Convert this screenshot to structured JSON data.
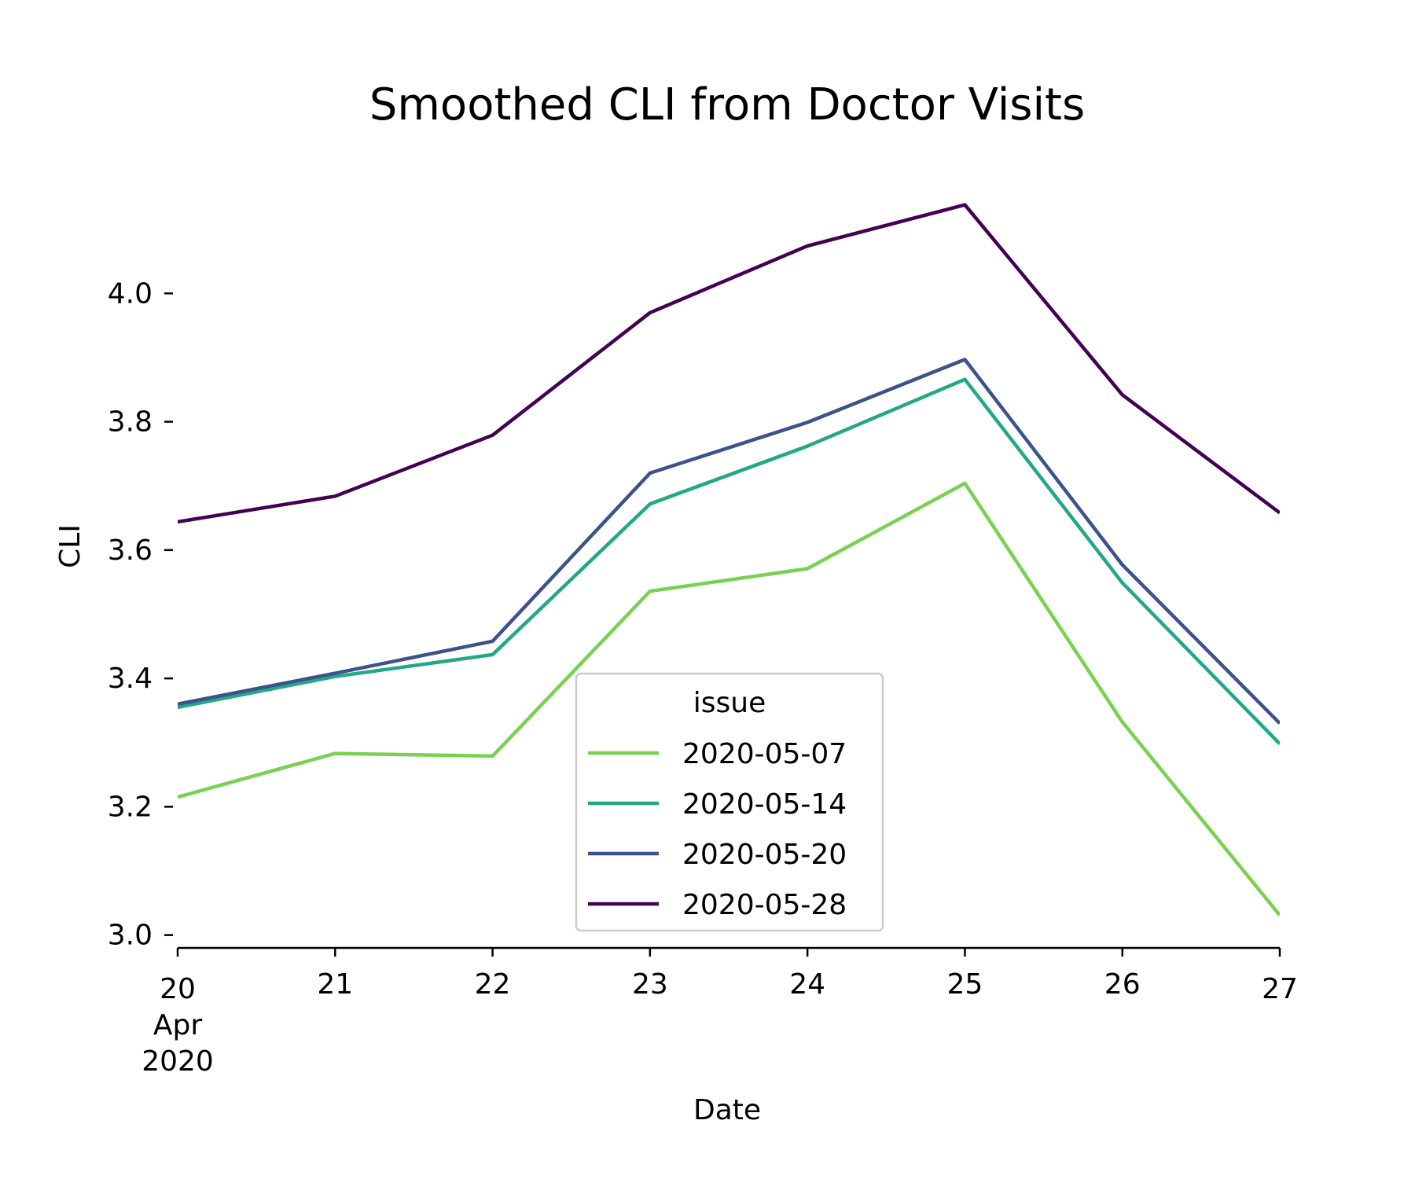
{
  "chart_data": {
    "type": "line",
    "title": "Smoothed CLI from Doctor Visits",
    "xlabel": "Date",
    "ylabel": "CLI",
    "x": [
      "2020-04-20",
      "2020-04-21",
      "2020-04-22",
      "2020-04-23",
      "2020-04-24",
      "2020-04-25",
      "2020-04-26",
      "2020-04-27"
    ],
    "x_tick_labels": [
      [
        "20",
        "Apr",
        "2020"
      ],
      [
        "21"
      ],
      [
        "22"
      ],
      [
        "23"
      ],
      [
        "24"
      ],
      [
        "25"
      ],
      [
        "26"
      ],
      [
        "27"
      ]
    ],
    "ylim": [
      2.98,
      4.2
    ],
    "y_ticks": [
      3.0,
      3.2,
      3.4,
      3.6,
      3.8,
      4.0
    ],
    "y_tick_labels": [
      "3.0",
      "3.2",
      "3.4",
      "3.6",
      "3.8",
      "4.0"
    ],
    "grid": false,
    "legend": {
      "title": "issue",
      "placement": "lower-center"
    },
    "series": [
      {
        "name": "2020-05-07",
        "color": "#7ad151",
        "values": [
          3.215,
          3.283,
          3.279,
          3.536,
          3.571,
          3.704,
          3.332,
          3.031
        ]
      },
      {
        "name": "2020-05-14",
        "color": "#22a884",
        "values": [
          3.355,
          3.403,
          3.437,
          3.672,
          3.762,
          3.866,
          3.549,
          3.298
        ]
      },
      {
        "name": "2020-05-20",
        "color": "#3b528b",
        "values": [
          3.36,
          3.408,
          3.458,
          3.72,
          3.799,
          3.897,
          3.577,
          3.33
        ]
      },
      {
        "name": "2020-05-28",
        "color": "#440154",
        "values": [
          3.644,
          3.684,
          3.779,
          3.97,
          4.074,
          4.138,
          3.842,
          3.658
        ]
      }
    ]
  }
}
